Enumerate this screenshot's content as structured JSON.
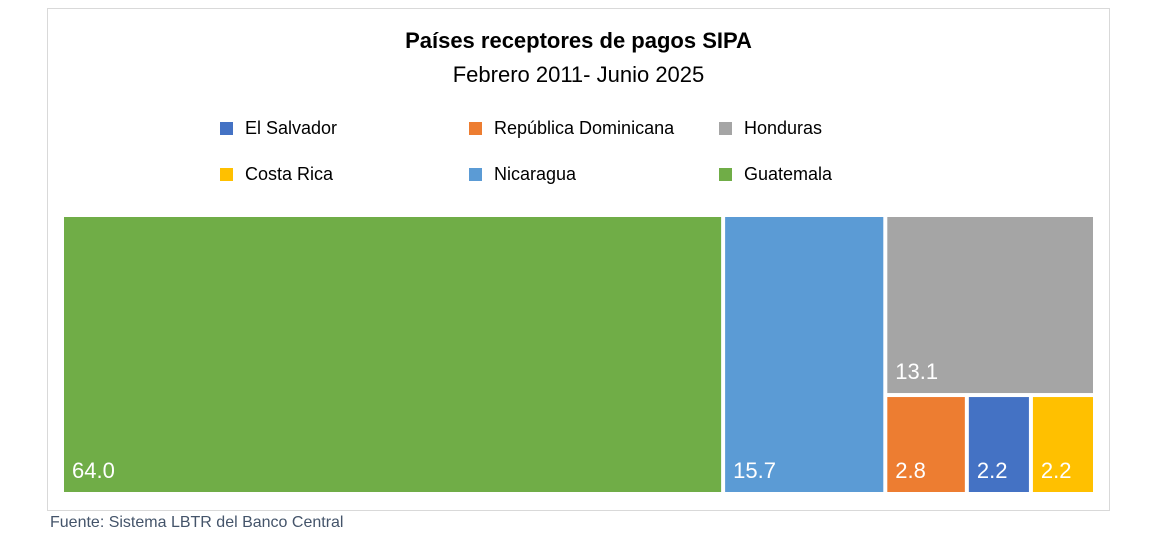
{
  "chart_data": {
    "type": "treemap",
    "title": "Países receptores de pagos SIPA",
    "subtitle": "Febrero 2011- Junio 2025",
    "legend": {
      "placement": "top",
      "entries": [
        {
          "name": "El Salvador",
          "color": "#4472c4"
        },
        {
          "name": "República Dominicana",
          "color": "#ed7d31"
        },
        {
          "name": "Honduras",
          "color": "#a5a5a5"
        },
        {
          "name": "Costa Rica",
          "color": "#ffc000"
        },
        {
          "name": "Nicaragua",
          "color": "#5b9bd5"
        },
        {
          "name": "Guatemala",
          "color": "#70ad47"
        }
      ]
    },
    "series": [
      {
        "name": "Guatemala",
        "value": 64.0,
        "label": "64.0",
        "color": "#70ad47"
      },
      {
        "name": "Nicaragua",
        "value": 15.7,
        "label": "15.7",
        "color": "#5b9bd5"
      },
      {
        "name": "Honduras",
        "value": 13.1,
        "label": "13.1",
        "color": "#a5a5a5"
      },
      {
        "name": "República Dominicana",
        "value": 2.8,
        "label": "2.8",
        "color": "#ed7d31"
      },
      {
        "name": "El Salvador",
        "value": 2.2,
        "label": "2.2",
        "color": "#4472c4"
      },
      {
        "name": "Costa Rica",
        "value": 2.2,
        "label": "2.2",
        "color": "#ffc000"
      }
    ]
  },
  "source_note": "Fuente: Sistema LBTR del Banco Central"
}
